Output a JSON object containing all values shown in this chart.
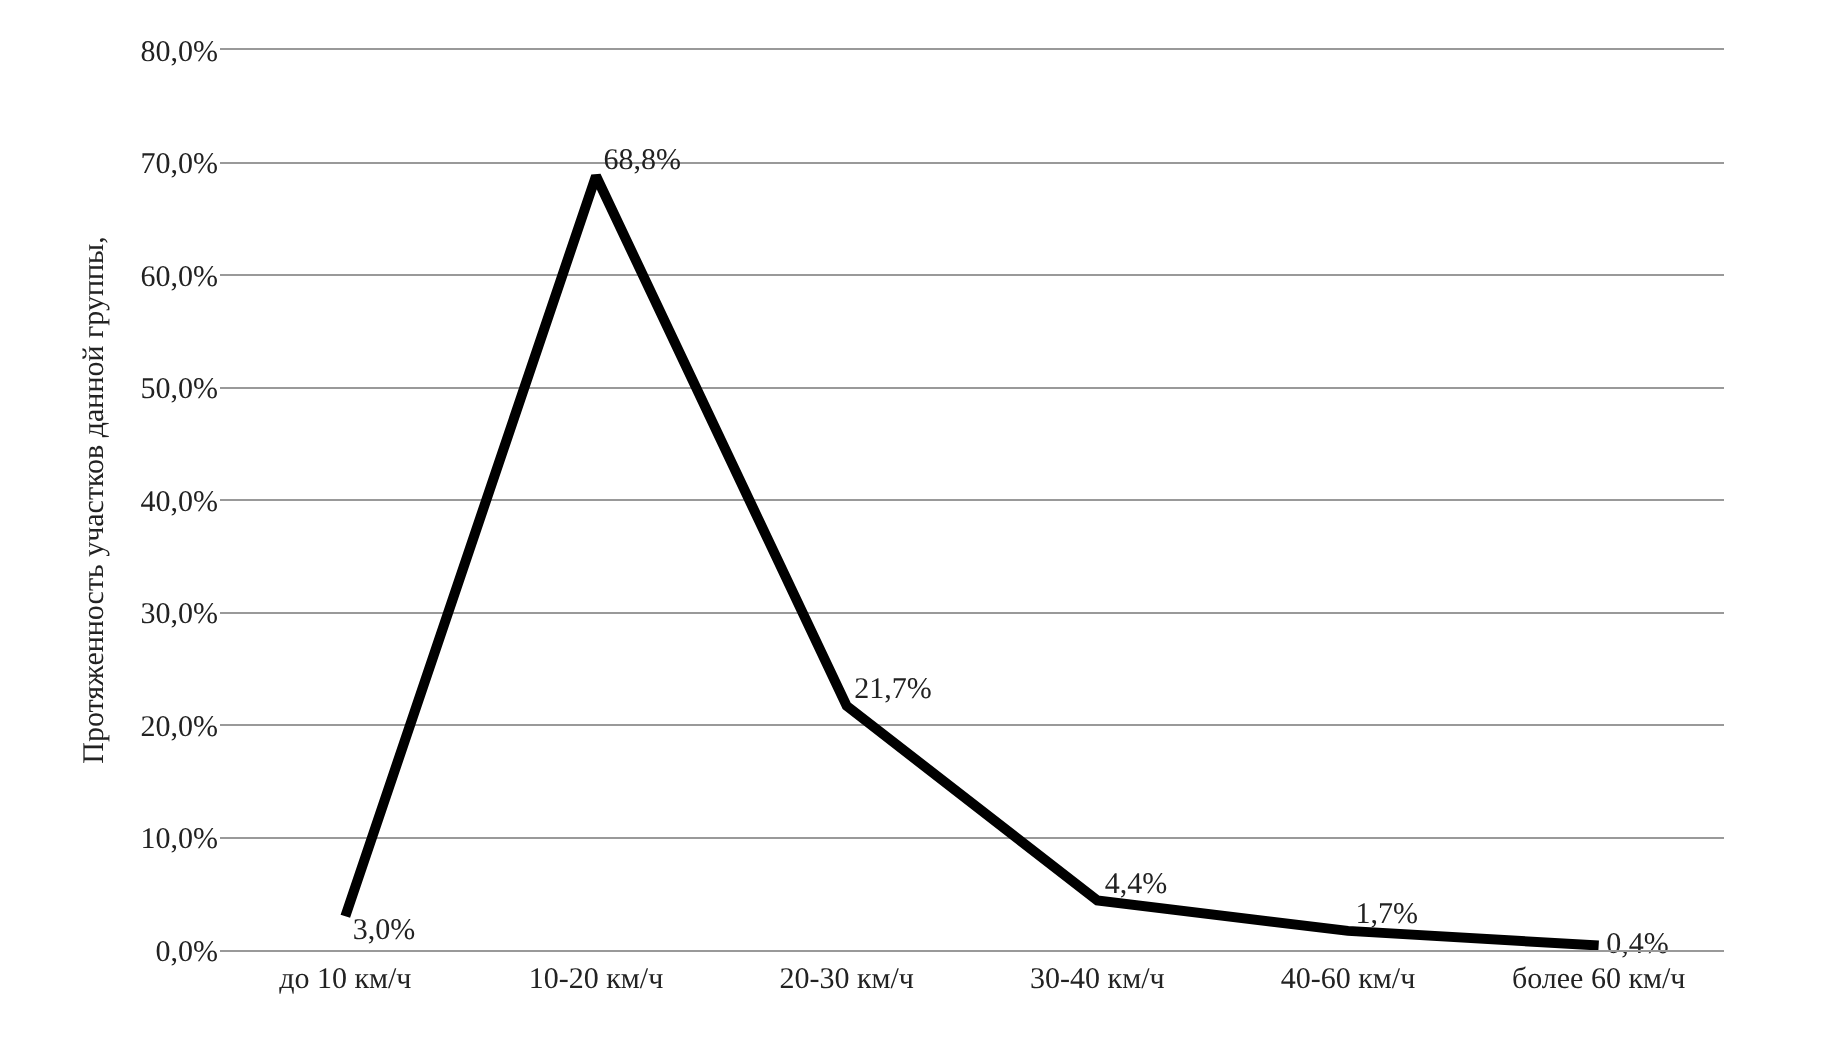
{
  "chart_data": {
    "type": "line",
    "ylabel": "Протяженность участков данной группы,",
    "categories": [
      "до 10 км/ч",
      "10-20 км/ч",
      "20-30 км/ч",
      "30-40 км/ч",
      "40-60 км/ч",
      "более 60 км/ч"
    ],
    "series": [
      {
        "color": "#000000",
        "values": [
          3.0,
          68.8,
          21.7,
          4.4,
          1.7,
          0.4
        ],
        "value_labels": [
          "3,0%",
          "68,8%",
          "21,7%",
          "4,4%",
          "1,7%",
          "0,4%"
        ]
      }
    ],
    "ylim": [
      0,
      80
    ],
    "yticks": [
      {
        "value": 0,
        "label": "0,0%"
      },
      {
        "value": 10,
        "label": "10,0%"
      },
      {
        "value": 20,
        "label": "20,0%"
      },
      {
        "value": 30,
        "label": "30,0%"
      },
      {
        "value": 40,
        "label": "40,0%"
      },
      {
        "value": 50,
        "label": "50,0%"
      },
      {
        "value": 60,
        "label": "60,0%"
      },
      {
        "value": 70,
        "label": "70,0%"
      },
      {
        "value": 80,
        "label": "80,0%"
      }
    ],
    "grid": "y",
    "marker": "none",
    "line_style": "solid"
  }
}
